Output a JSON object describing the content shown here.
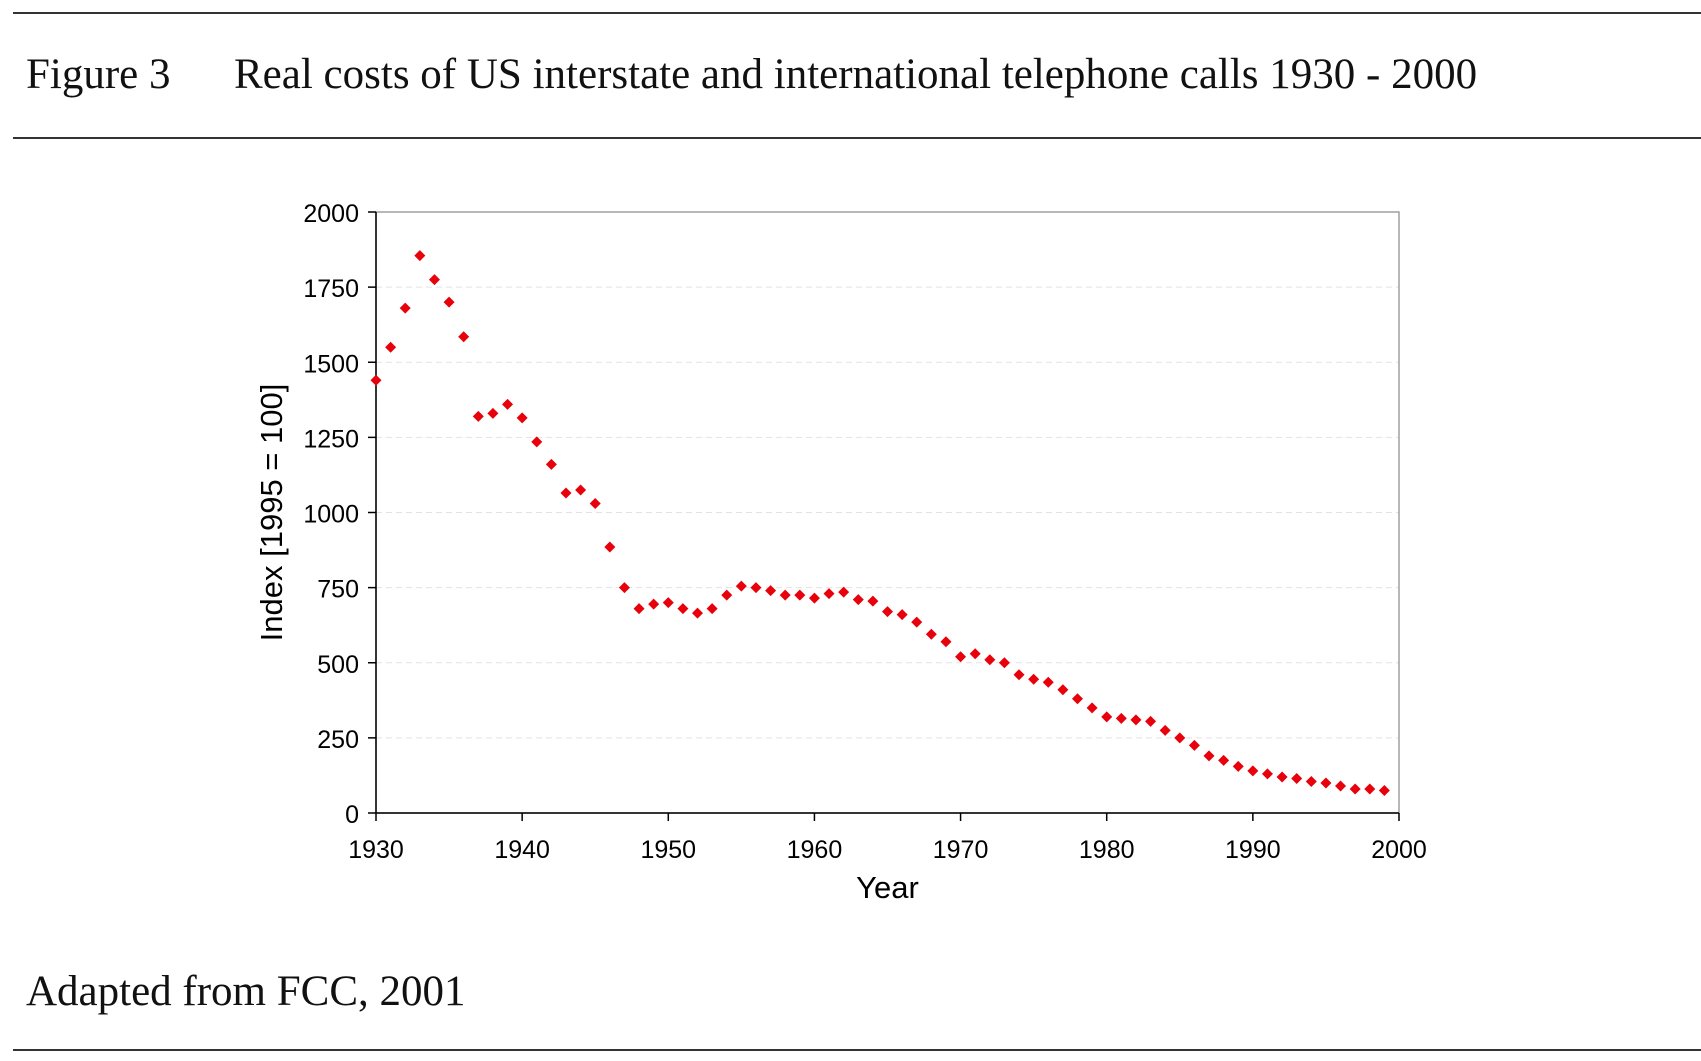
{
  "figure": {
    "label": "Figure 3",
    "title": "Real costs of  US interstate and international telephone calls 1930 - 2000"
  },
  "source": {
    "text": "Adapted from FCC, 2001"
  },
  "chart_data": {
    "type": "scatter",
    "title": "Real costs of  US interstate and international telephone calls 1930 - 2000",
    "xlabel": "Year",
    "ylabel": "Index [1995 = 100]",
    "xlim": [
      1930,
      2000
    ],
    "ylim": [
      0,
      2000
    ],
    "xticks": [
      1930,
      1940,
      1950,
      1960,
      1970,
      1980,
      1990,
      2000
    ],
    "yticks": [
      0,
      250,
      500,
      750,
      1000,
      1250,
      1500,
      1750,
      2000
    ],
    "grid": "horizontal dashed",
    "marker_color": "#e8000b",
    "series": [
      {
        "name": "Index",
        "x": [
          1930,
          1931,
          1932,
          1933,
          1934,
          1935,
          1936,
          1937,
          1938,
          1939,
          1940,
          1941,
          1942,
          1943,
          1944,
          1945,
          1946,
          1947,
          1948,
          1949,
          1950,
          1951,
          1952,
          1953,
          1954,
          1955,
          1956,
          1957,
          1958,
          1959,
          1960,
          1961,
          1962,
          1963,
          1964,
          1965,
          1966,
          1967,
          1968,
          1969,
          1970,
          1971,
          1972,
          1973,
          1974,
          1975,
          1976,
          1977,
          1978,
          1979,
          1980,
          1981,
          1982,
          1983,
          1984,
          1985,
          1986,
          1987,
          1988,
          1989,
          1990,
          1991,
          1992,
          1993,
          1994,
          1995,
          1996,
          1997,
          1998,
          1999
        ],
        "y": [
          1440,
          1550,
          1680,
          1855,
          1775,
          1700,
          1585,
          1320,
          1330,
          1360,
          1315,
          1235,
          1160,
          1065,
          1075,
          1030,
          885,
          750,
          680,
          695,
          700,
          680,
          665,
          680,
          725,
          755,
          750,
          740,
          725,
          725,
          715,
          730,
          735,
          710,
          705,
          670,
          660,
          635,
          595,
          570,
          520,
          530,
          510,
          500,
          460,
          445,
          435,
          410,
          380,
          350,
          320,
          315,
          310,
          305,
          275,
          250,
          225,
          190,
          175,
          155,
          140,
          130,
          120,
          115,
          105,
          100,
          90,
          80,
          80,
          75
        ]
      }
    ]
  }
}
